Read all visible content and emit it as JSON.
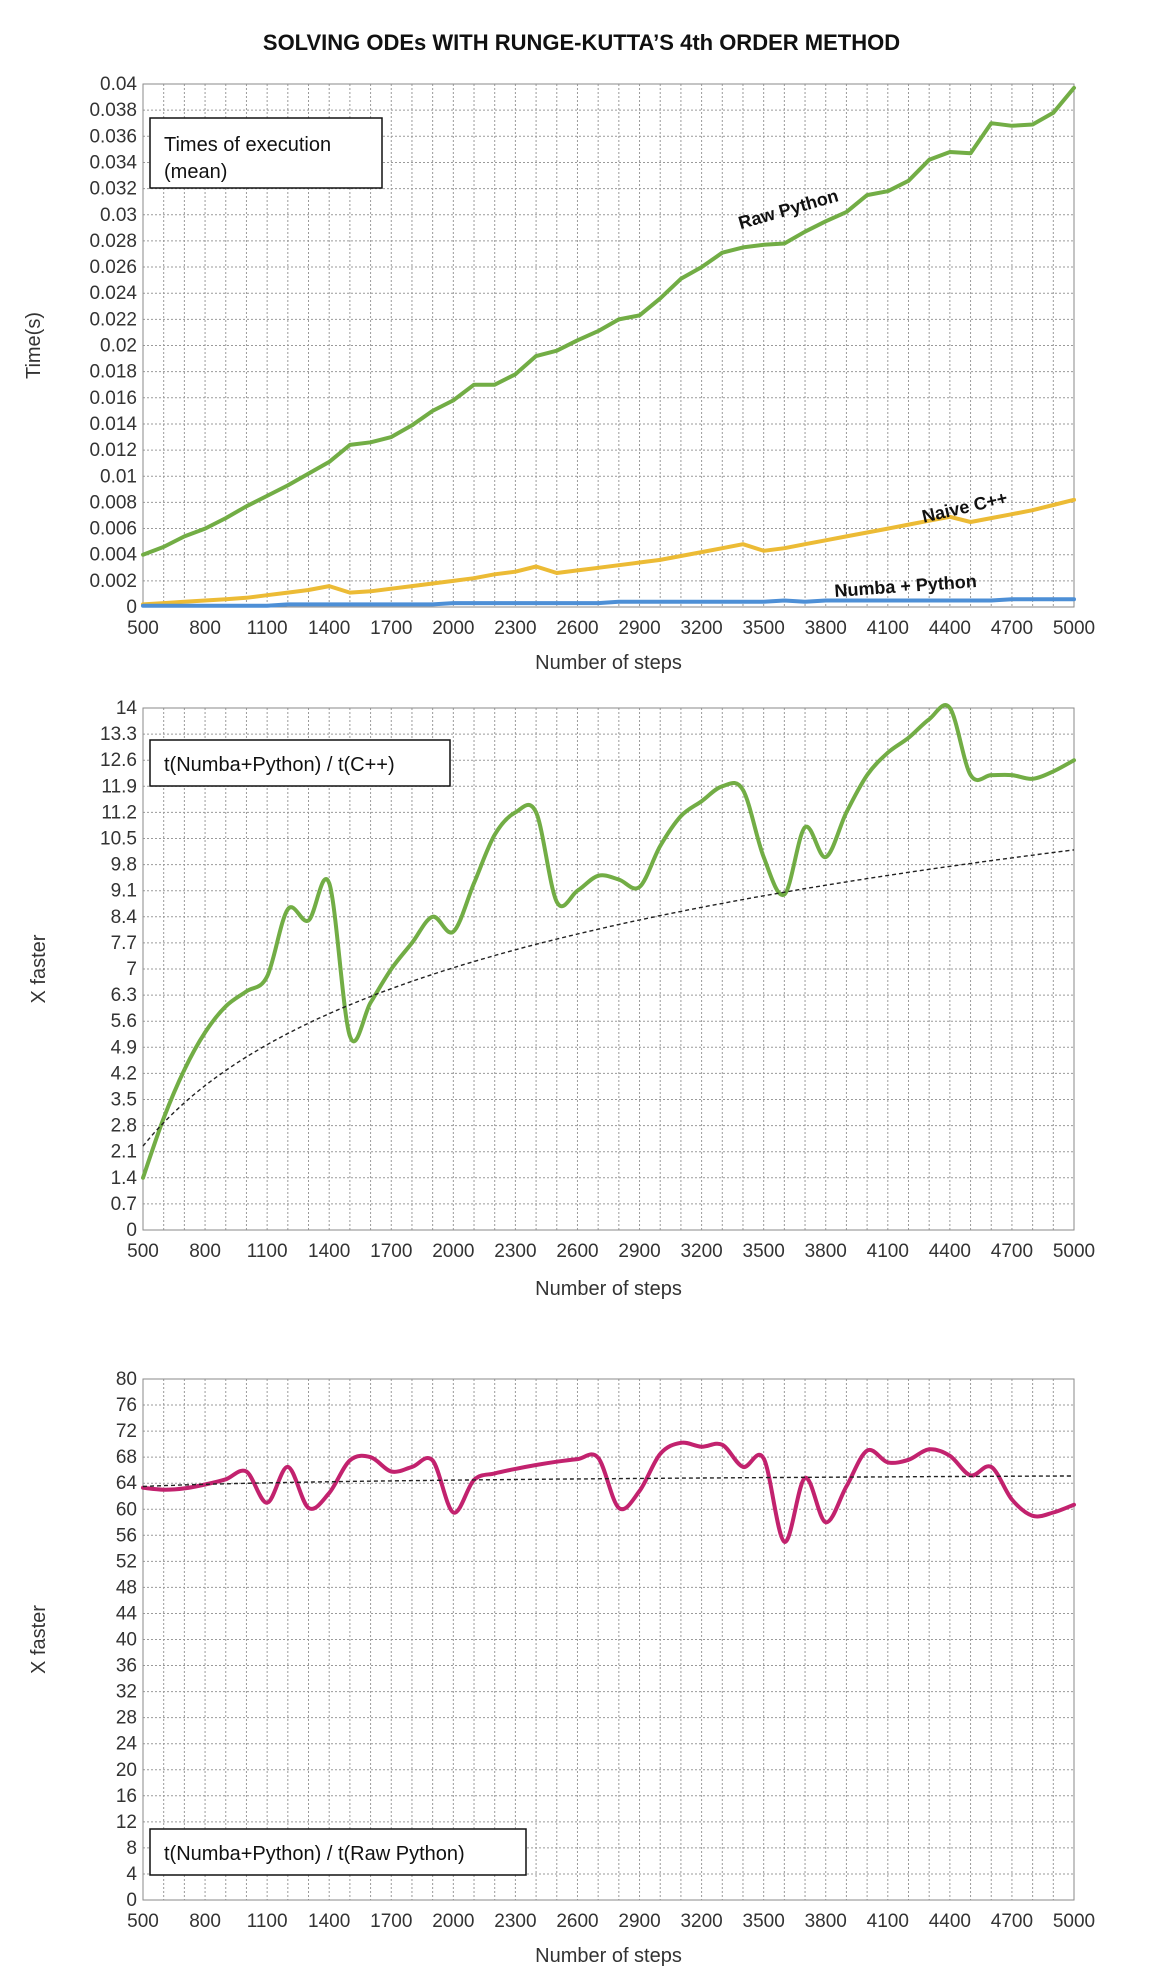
{
  "title": "SOLVING ODEs WITH RUNGE-KUTTA’S 4th ORDER METHOD",
  "chart_data": [
    {
      "type": "line",
      "box_label": [
        "Times of execution",
        "(mean)"
      ],
      "xlabel": "Number of steps",
      "ylabel": "Time(s)",
      "xlim": [
        500,
        5000
      ],
      "ylim": [
        0,
        0.04
      ],
      "y_ticks": [
        "0",
        "0.002",
        "0.004",
        "0.006",
        "0.008",
        "0.01",
        "0.012",
        "0.014",
        "0.016",
        "0.018",
        "0.02",
        "0.022",
        "0.024",
        "0.026",
        "0.028",
        "0.03",
        "0.032",
        "0.034",
        "0.036",
        "0.038",
        "0.04"
      ],
      "x_ticks": [
        "500",
        "800",
        "1100",
        "1400",
        "1700",
        "2000",
        "2300",
        "2600",
        "2900",
        "3200",
        "3500",
        "3800",
        "4100",
        "4400",
        "4700",
        "5000"
      ],
      "grid": true,
      "x": [
        500,
        600,
        700,
        800,
        900,
        1000,
        1100,
        1200,
        1300,
        1400,
        1500,
        1600,
        1700,
        1800,
        1900,
        2000,
        2100,
        2200,
        2300,
        2400,
        2500,
        2600,
        2700,
        2800,
        2900,
        3000,
        3100,
        3200,
        3300,
        3400,
        3500,
        3600,
        3700,
        3800,
        3900,
        4000,
        4100,
        4200,
        4300,
        4400,
        4500,
        4600,
        4700,
        4800,
        4900,
        5000
      ],
      "series": [
        {
          "name": "Raw Python",
          "color": "#72ad45",
          "values": [
            0.004,
            0.0046,
            0.0054,
            0.006,
            0.0068,
            0.0077,
            0.0085,
            0.0093,
            0.0102,
            0.0111,
            0.0124,
            0.0126,
            0.013,
            0.0139,
            0.015,
            0.0158,
            0.017,
            0.017,
            0.0178,
            0.0192,
            0.0196,
            0.0204,
            0.0211,
            0.022,
            0.0223,
            0.0236,
            0.0251,
            0.026,
            0.0271,
            0.0275,
            0.0277,
            0.0278,
            0.0287,
            0.0295,
            0.0302,
            0.0315,
            0.0318,
            0.0326,
            0.0342,
            0.0348,
            0.0347,
            0.037,
            0.0368,
            0.0369,
            0.0378,
            0.0397
          ]
        },
        {
          "name": "Naive C++",
          "color": "#ecbb35",
          "values": [
            0.0002,
            0.0003,
            0.0004,
            0.0005,
            0.0006,
            0.0007,
            0.0009,
            0.0011,
            0.0013,
            0.0016,
            0.0011,
            0.0012,
            0.0014,
            0.0016,
            0.0018,
            0.002,
            0.0022,
            0.0025,
            0.0027,
            0.0031,
            0.0026,
            0.0028,
            0.003,
            0.0032,
            0.0034,
            0.0036,
            0.0039,
            0.0042,
            0.0045,
            0.0048,
            0.0043,
            0.0045,
            0.0048,
            0.0051,
            0.0054,
            0.0057,
            0.006,
            0.0063,
            0.0066,
            0.0069,
            0.0065,
            0.0068,
            0.0071,
            0.0074,
            0.0078,
            0.0082
          ]
        },
        {
          "name": "Numba + Python",
          "color": "#4d8fd6",
          "values": [
            0.0001,
            0.0001,
            0.0001,
            0.0001,
            0.0001,
            0.0001,
            0.0001,
            0.0002,
            0.0002,
            0.0002,
            0.0002,
            0.0002,
            0.0002,
            0.0002,
            0.0002,
            0.0003,
            0.0003,
            0.0003,
            0.0003,
            0.0003,
            0.0003,
            0.0003,
            0.0003,
            0.0004,
            0.0004,
            0.0004,
            0.0004,
            0.0004,
            0.0004,
            0.0004,
            0.0004,
            0.0005,
            0.0004,
            0.0005,
            0.0005,
            0.0005,
            0.0005,
            0.0005,
            0.0005,
            0.0005,
            0.0005,
            0.0005,
            0.0006,
            0.0006,
            0.0006,
            0.0006
          ]
        }
      ]
    },
    {
      "type": "line",
      "box_label": [
        "t(Numba+Python) / t(C++)"
      ],
      "xlabel": "Number of steps",
      "ylabel": "X faster",
      "xlim": [
        500,
        5000
      ],
      "ylim": [
        0,
        14
      ],
      "y_ticks": [
        "0",
        "0.7",
        "1.4",
        "2.1",
        "2.8",
        "3.5",
        "4.2",
        "4.9",
        "5.6",
        "6.3",
        "7",
        "7.7",
        "8.4",
        "9.1",
        "9.8",
        "10.5",
        "11.2",
        "11.9",
        "12.6",
        "13.3",
        "14"
      ],
      "x_ticks": [
        "500",
        "800",
        "1100",
        "1400",
        "1700",
        "2000",
        "2300",
        "2600",
        "2900",
        "3200",
        "3500",
        "3800",
        "4100",
        "4400",
        "4700",
        "5000"
      ],
      "grid": true,
      "x": [
        500,
        600,
        700,
        800,
        900,
        1000,
        1100,
        1200,
        1300,
        1400,
        1500,
        1600,
        1700,
        1800,
        1900,
        2000,
        2100,
        2200,
        2300,
        2400,
        2500,
        2600,
        2700,
        2800,
        2900,
        3000,
        3100,
        3200,
        3300,
        3400,
        3500,
        3600,
        3700,
        3800,
        3900,
        4000,
        4100,
        4200,
        4300,
        4400,
        4500,
        4600,
        4700,
        4800,
        4900,
        5000
      ],
      "series": [
        {
          "color": "#72ad45",
          "values": [
            1.4,
            3.0,
            4.3,
            5.3,
            6.0,
            6.4,
            6.8,
            8.6,
            8.3,
            9.3,
            5.2,
            6.1,
            7.0,
            7.7,
            8.4,
            8.0,
            9.3,
            10.6,
            11.2,
            11.2,
            8.8,
            9.1,
            9.5,
            9.4,
            9.2,
            10.3,
            11.1,
            11.5,
            11.9,
            11.8,
            10.0,
            9.0,
            10.8,
            10.0,
            11.2,
            12.2,
            12.8,
            13.2,
            13.7,
            14.0,
            12.2,
            12.2,
            12.2,
            12.1,
            12.3,
            12.6
          ]
        },
        {
          "name": "trend",
          "color": "#222222",
          "dashed": true,
          "log_fit": {
            "a": 2.25,
            "b": 3.45
          }
        }
      ]
    },
    {
      "type": "line",
      "box_label": [
        "t(Numba+Python) / t(Raw Python)"
      ],
      "xlabel": "Number of steps",
      "ylabel": "X faster",
      "xlim": [
        500,
        5000
      ],
      "ylim": [
        0,
        80
      ],
      "y_ticks": [
        "0",
        "4",
        "8",
        "12",
        "16",
        "20",
        "24",
        "28",
        "32",
        "36",
        "40",
        "44",
        "48",
        "52",
        "56",
        "60",
        "64",
        "68",
        "72",
        "76",
        "80"
      ],
      "x_ticks": [
        "500",
        "800",
        "1100",
        "1400",
        "1700",
        "2000",
        "2300",
        "2600",
        "2900",
        "3200",
        "3500",
        "3800",
        "4100",
        "4400",
        "4700",
        "5000"
      ],
      "grid": true,
      "x": [
        500,
        600,
        700,
        800,
        900,
        1000,
        1100,
        1200,
        1300,
        1400,
        1500,
        1600,
        1700,
        1800,
        1900,
        2000,
        2100,
        2200,
        2300,
        2400,
        2500,
        2600,
        2700,
        2800,
        2900,
        3000,
        3100,
        3200,
        3300,
        3400,
        3500,
        3600,
        3700,
        3800,
        3900,
        4000,
        4100,
        4200,
        4300,
        4400,
        4500,
        4600,
        4700,
        4800,
        4900,
        5000
      ],
      "series": [
        {
          "color": "#c2226e",
          "values": [
            63.3,
            63.0,
            63.2,
            63.8,
            64.6,
            65.8,
            61.0,
            66.5,
            60.2,
            62.5,
            67.5,
            68.0,
            65.8,
            66.5,
            67.5,
            59.5,
            64.5,
            65.5,
            66.2,
            66.8,
            67.3,
            67.7,
            67.9,
            60.2,
            62.8,
            68.5,
            70.2,
            69.6,
            69.9,
            66.5,
            67.8,
            55.0,
            64.8,
            58.0,
            63.5,
            69.0,
            67.2,
            67.6,
            69.2,
            68.2,
            65.2,
            66.5,
            61.5,
            59.0,
            59.5,
            60.7
          ]
        },
        {
          "name": "trend",
          "color": "#222222",
          "dashed": true,
          "log_fit": {
            "a": 63.5,
            "b": 0.7
          }
        }
      ]
    }
  ]
}
